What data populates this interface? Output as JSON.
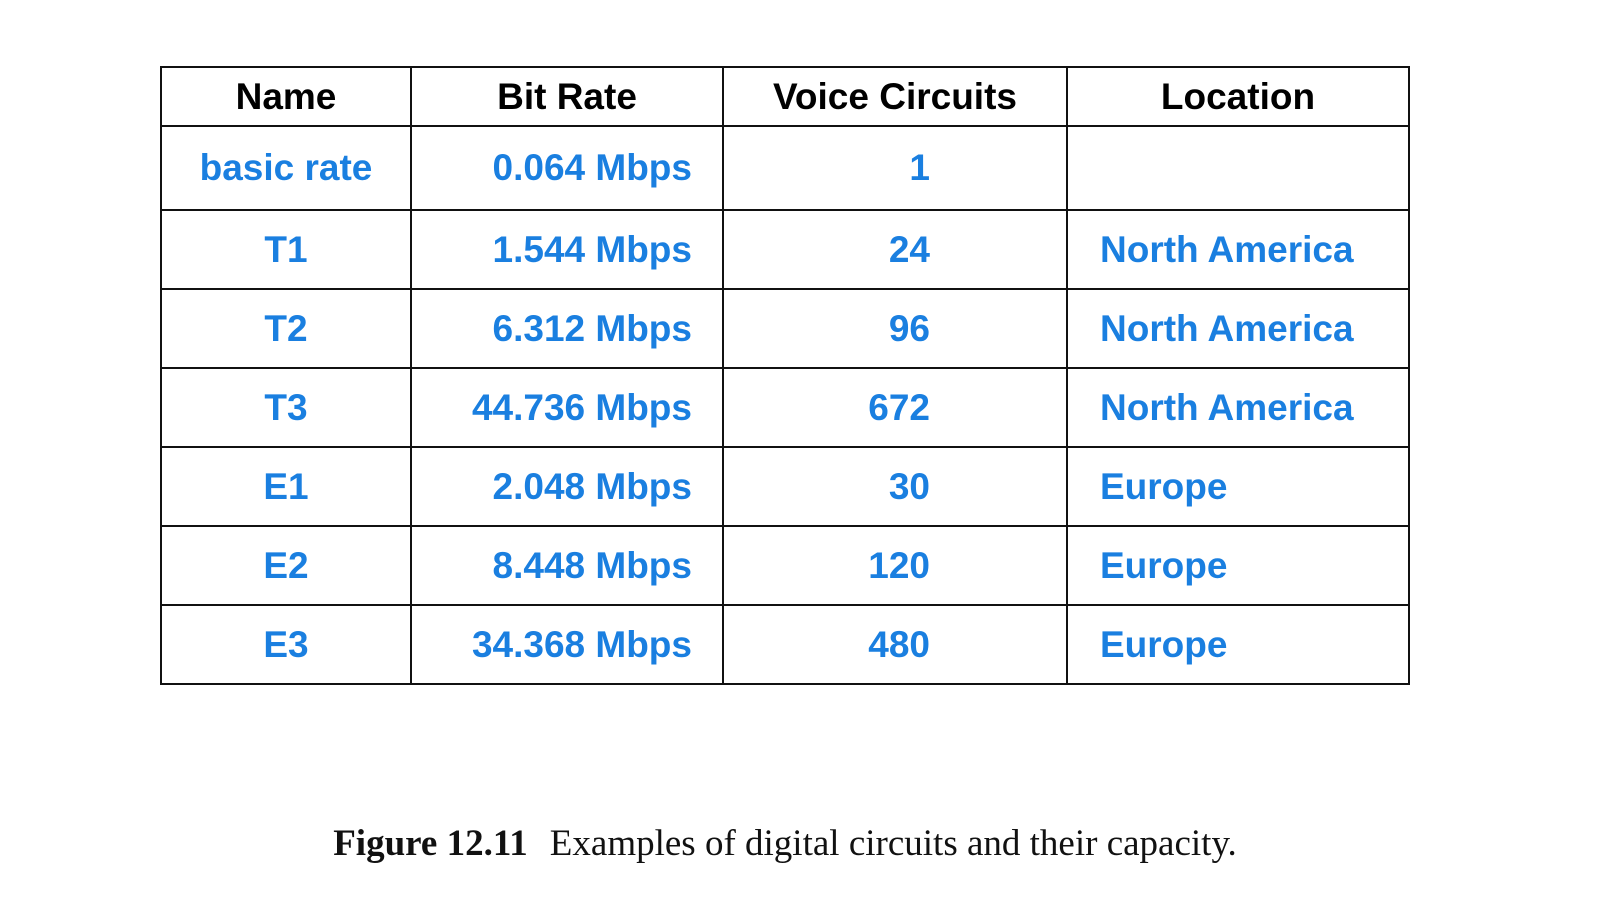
{
  "table": {
    "header": [
      "Name",
      "Bit Rate",
      "Voice Circuits",
      "Location"
    ],
    "rows": [
      [
        "basic rate",
        "0.064 Mbps",
        "1",
        null
      ],
      [
        "T1",
        "1.544 Mbps",
        "24",
        "North America"
      ],
      [
        "T2",
        "6.312 Mbps",
        "96",
        "North America"
      ],
      [
        "T3",
        "44.736 Mbps",
        "672",
        "North America"
      ],
      [
        "E1",
        "2.048 Mbps",
        "30",
        "Europe"
      ],
      [
        "E2",
        "8.448 Mbps",
        "120",
        "Europe"
      ],
      [
        "E3",
        "34.368 Mbps",
        "480",
        "Europe"
      ]
    ]
  },
  "caption": {
    "label": "Figure 12.11",
    "text": "Examples of digital circuits and their capacity."
  }
}
